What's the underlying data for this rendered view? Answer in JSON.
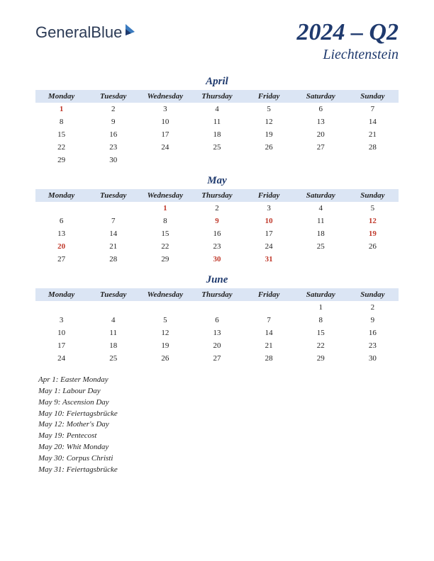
{
  "logo": {
    "part1": "General",
    "part2": "Blue"
  },
  "title": {
    "year_quarter": "2024 – Q2",
    "country": "Liechtenstein"
  },
  "weekdays": [
    "Monday",
    "Tuesday",
    "Wednesday",
    "Thursday",
    "Friday",
    "Saturday",
    "Sunday"
  ],
  "months": [
    {
      "name": "April",
      "weeks": [
        [
          {
            "d": "1",
            "h": true
          },
          {
            "d": "2"
          },
          {
            "d": "3"
          },
          {
            "d": "4"
          },
          {
            "d": "5"
          },
          {
            "d": "6"
          },
          {
            "d": "7"
          }
        ],
        [
          {
            "d": "8"
          },
          {
            "d": "9"
          },
          {
            "d": "10"
          },
          {
            "d": "11"
          },
          {
            "d": "12"
          },
          {
            "d": "13"
          },
          {
            "d": "14"
          }
        ],
        [
          {
            "d": "15"
          },
          {
            "d": "16"
          },
          {
            "d": "17"
          },
          {
            "d": "18"
          },
          {
            "d": "19"
          },
          {
            "d": "20"
          },
          {
            "d": "21"
          }
        ],
        [
          {
            "d": "22"
          },
          {
            "d": "23"
          },
          {
            "d": "24"
          },
          {
            "d": "25"
          },
          {
            "d": "26"
          },
          {
            "d": "27"
          },
          {
            "d": "28"
          }
        ],
        [
          {
            "d": "29"
          },
          {
            "d": "30"
          },
          {
            "d": ""
          },
          {
            "d": ""
          },
          {
            "d": ""
          },
          {
            "d": ""
          },
          {
            "d": ""
          }
        ]
      ]
    },
    {
      "name": "May",
      "weeks": [
        [
          {
            "d": ""
          },
          {
            "d": ""
          },
          {
            "d": "1",
            "h": true
          },
          {
            "d": "2"
          },
          {
            "d": "3"
          },
          {
            "d": "4"
          },
          {
            "d": "5"
          }
        ],
        [
          {
            "d": "6"
          },
          {
            "d": "7"
          },
          {
            "d": "8"
          },
          {
            "d": "9",
            "h": true
          },
          {
            "d": "10",
            "h": true
          },
          {
            "d": "11"
          },
          {
            "d": "12",
            "h": true
          }
        ],
        [
          {
            "d": "13"
          },
          {
            "d": "14"
          },
          {
            "d": "15"
          },
          {
            "d": "16"
          },
          {
            "d": "17"
          },
          {
            "d": "18"
          },
          {
            "d": "19",
            "h": true
          }
        ],
        [
          {
            "d": "20",
            "h": true
          },
          {
            "d": "21"
          },
          {
            "d": "22"
          },
          {
            "d": "23"
          },
          {
            "d": "24"
          },
          {
            "d": "25"
          },
          {
            "d": "26"
          }
        ],
        [
          {
            "d": "27"
          },
          {
            "d": "28"
          },
          {
            "d": "29"
          },
          {
            "d": "30",
            "h": true
          },
          {
            "d": "31",
            "h": true
          },
          {
            "d": ""
          },
          {
            "d": ""
          }
        ]
      ]
    },
    {
      "name": "June",
      "weeks": [
        [
          {
            "d": ""
          },
          {
            "d": ""
          },
          {
            "d": ""
          },
          {
            "d": ""
          },
          {
            "d": ""
          },
          {
            "d": "1"
          },
          {
            "d": "2"
          }
        ],
        [
          {
            "d": "3"
          },
          {
            "d": "4"
          },
          {
            "d": "5"
          },
          {
            "d": "6"
          },
          {
            "d": "7"
          },
          {
            "d": "8"
          },
          {
            "d": "9"
          }
        ],
        [
          {
            "d": "10"
          },
          {
            "d": "11"
          },
          {
            "d": "12"
          },
          {
            "d": "13"
          },
          {
            "d": "14"
          },
          {
            "d": "15"
          },
          {
            "d": "16"
          }
        ],
        [
          {
            "d": "17"
          },
          {
            "d": "18"
          },
          {
            "d": "19"
          },
          {
            "d": "20"
          },
          {
            "d": "21"
          },
          {
            "d": "22"
          },
          {
            "d": "23"
          }
        ],
        [
          {
            "d": "24"
          },
          {
            "d": "25"
          },
          {
            "d": "26"
          },
          {
            "d": "27"
          },
          {
            "d": "28"
          },
          {
            "d": "29"
          },
          {
            "d": "30"
          }
        ]
      ]
    }
  ],
  "holiday_list": [
    "Apr 1: Easter Monday",
    "May 1: Labour Day",
    "May 9: Ascension Day",
    "May 10: Feiertagsbrücke",
    "May 12: Mother's Day",
    "May 19: Pentecost",
    "May 20: Whit Monday",
    "May 30: Corpus Christi",
    "May 31: Feiertagsbrücke"
  ]
}
